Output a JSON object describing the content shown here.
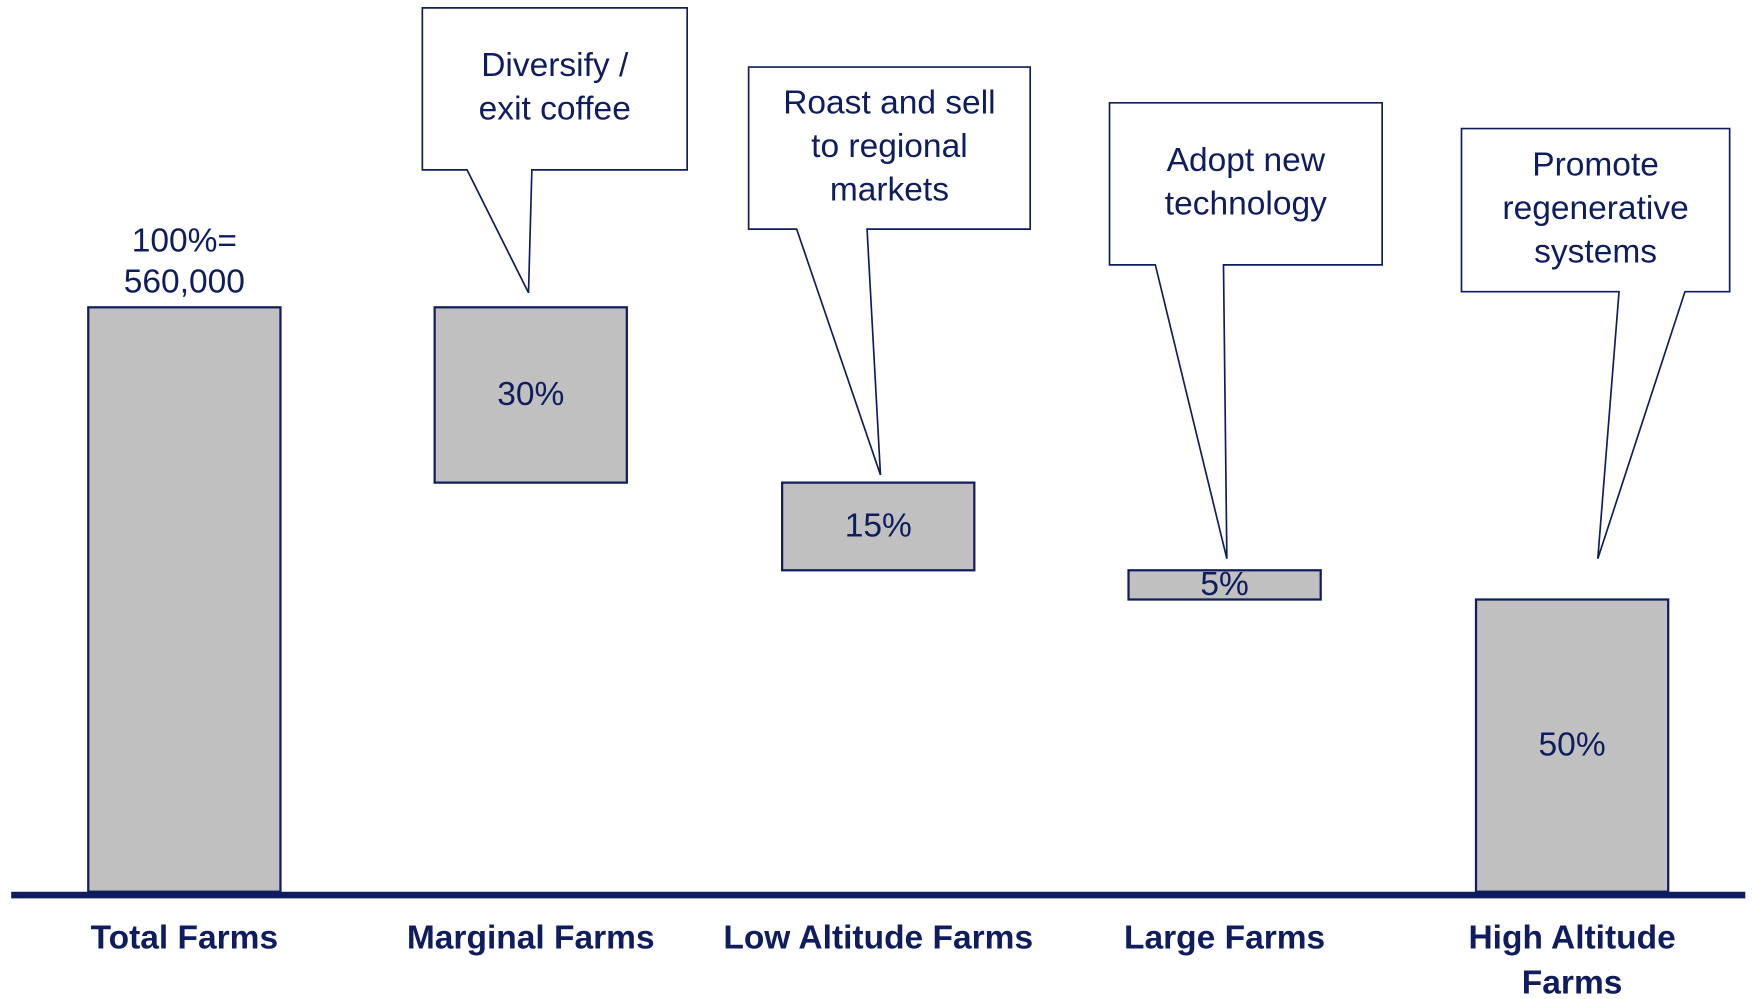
{
  "chart_data": {
    "type": "waterfall",
    "categories": [
      "Total Farms",
      "Marginal Farms",
      "Low Altitude Farms",
      "Large Farms",
      "High Altitude Farms"
    ],
    "values": [
      100,
      30,
      15,
      5,
      50
    ],
    "value_labels": [
      "100%=",
      "30%",
      "15%",
      "5%",
      "50%"
    ],
    "total_label": "560,000",
    "ylim": [
      0,
      100
    ],
    "color": "#c0c0c0",
    "callouts": [
      null,
      [
        "Diversify /",
        "exit coffee"
      ],
      [
        "Roast and sell",
        "to regional",
        "markets"
      ],
      [
        "Adopt new",
        "technology"
      ],
      [
        "Promote",
        "regenerative",
        "systems"
      ]
    ]
  }
}
